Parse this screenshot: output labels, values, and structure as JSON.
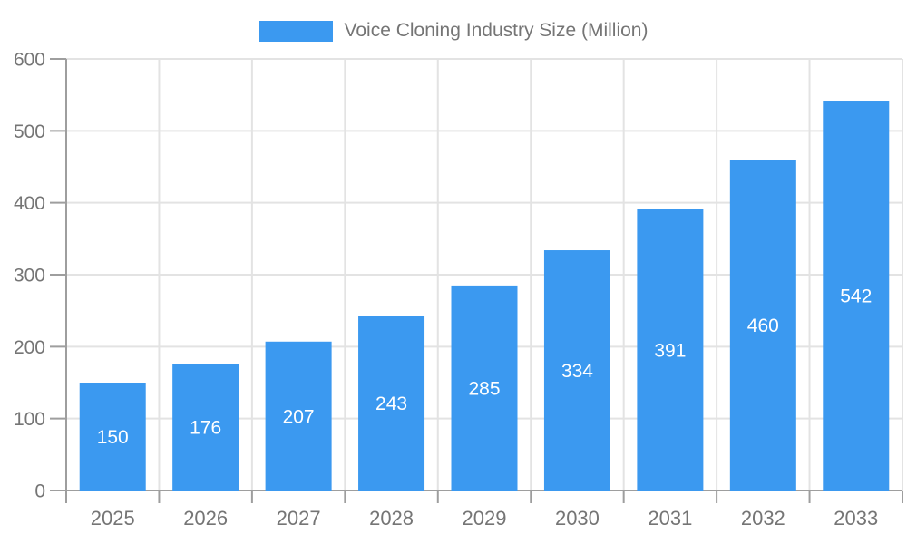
{
  "legend": {
    "label": "Voice Cloning Industry Size (Million)"
  },
  "colors": {
    "bar": "#3B99F0",
    "axis": "#9E9E9E",
    "grid": "#E3E3E3",
    "tick_label": "#757575",
    "value_label": "#FFFFFF",
    "background": "#FFFFFF"
  },
  "chart_data": {
    "type": "bar",
    "title": "Voice Cloning Industry Size (Million)",
    "series_name": "Voice Cloning Industry Size (Million)",
    "categories": [
      "2025",
      "2026",
      "2027",
      "2028",
      "2029",
      "2030",
      "2031",
      "2032",
      "2033"
    ],
    "values": [
      150,
      176,
      207,
      243,
      285,
      334,
      391,
      460,
      542
    ],
    "xlabel": "",
    "ylabel": "",
    "ylim": [
      0,
      600
    ],
    "yticks": [
      0,
      100,
      200,
      300,
      400,
      500,
      600
    ],
    "grid": true,
    "legend_position": "top",
    "value_label_position": "inside-center"
  }
}
